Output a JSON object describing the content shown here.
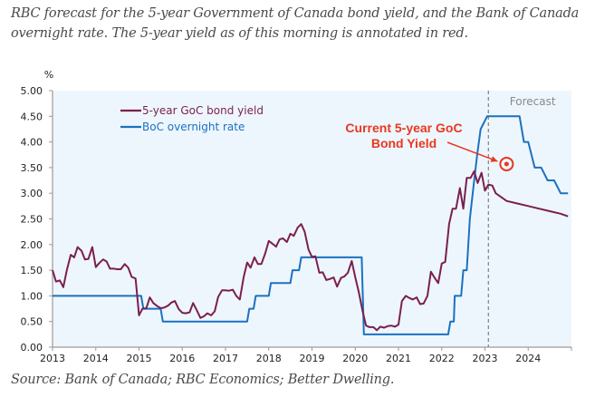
{
  "caption": "RBC forecast for the 5-year Government of Canada bond yield, and the Bank of Canada overnight rate. The 5-year yield as of this morning is annotated in red.",
  "source": "Source: Bank of Canada; RBC Economics; Better Dwelling.",
  "colors": {
    "bond": "#7b1f4e",
    "overnight": "#1a72c0",
    "annotation": "#e8381f",
    "plot_bg": "#eef6fd",
    "forecast_line": "#8a8a8a"
  },
  "chart_data": {
    "type": "line",
    "title": "",
    "xlabel": "",
    "ylabel": "%",
    "xlim": [
      2013,
      2025
    ],
    "ylim": [
      0,
      5
    ],
    "x_ticks": [
      "2013",
      "2014",
      "2015",
      "2016",
      "2017",
      "2018",
      "2019",
      "2020",
      "2021",
      "2022",
      "2023",
      "2024"
    ],
    "y_ticks": [
      "0.00",
      "0.50",
      "1.00",
      "1.50",
      "2.00",
      "2.50",
      "3.00",
      "3.50",
      "4.00",
      "4.50",
      "5.00"
    ],
    "grid": false,
    "legend": {
      "position": "top-left",
      "entries": [
        "5-year GoC bond yield",
        "BoC overnight rate"
      ]
    },
    "forecast_start": 2023.08,
    "forecast_label": "Forecast",
    "annotation": {
      "text_lines": [
        "Current 5-year GoC",
        "Bond Yield"
      ],
      "x": 2023.5,
      "y": 3.57
    },
    "series": [
      {
        "name": "5-year GoC bond yield",
        "x": [
          2013.0,
          2013.08,
          2013.17,
          2013.25,
          2013.33,
          2013.42,
          2013.5,
          2013.58,
          2013.67,
          2013.75,
          2013.83,
          2013.92,
          2014.0,
          2014.08,
          2014.17,
          2014.25,
          2014.33,
          2014.42,
          2014.5,
          2014.58,
          2014.67,
          2014.75,
          2014.83,
          2014.92,
          2015.0,
          2015.08,
          2015.17,
          2015.25,
          2015.33,
          2015.42,
          2015.5,
          2015.58,
          2015.67,
          2015.75,
          2015.83,
          2015.92,
          2016.0,
          2016.08,
          2016.17,
          2016.25,
          2016.33,
          2016.42,
          2016.5,
          2016.58,
          2016.67,
          2016.75,
          2016.83,
          2016.92,
          2017.0,
          2017.08,
          2017.17,
          2017.25,
          2017.33,
          2017.42,
          2017.5,
          2017.58,
          2017.67,
          2017.75,
          2017.83,
          2017.92,
          2018.0,
          2018.08,
          2018.17,
          2018.25,
          2018.33,
          2018.42,
          2018.5,
          2018.58,
          2018.67,
          2018.75,
          2018.83,
          2018.92,
          2019.0,
          2019.08,
          2019.17,
          2019.25,
          2019.33,
          2019.42,
          2019.5,
          2019.58,
          2019.67,
          2019.75,
          2019.83,
          2019.92,
          2020.0,
          2020.08,
          2020.17,
          2020.25,
          2020.33,
          2020.42,
          2020.5,
          2020.58,
          2020.67,
          2020.75,
          2020.83,
          2020.92,
          2021.0,
          2021.08,
          2021.17,
          2021.25,
          2021.33,
          2021.42,
          2021.5,
          2021.58,
          2021.67,
          2021.75,
          2021.83,
          2021.92,
          2022.0,
          2022.08,
          2022.17,
          2022.25,
          2022.33,
          2022.42,
          2022.5,
          2022.58,
          2022.67,
          2022.75,
          2022.83,
          2022.92,
          2023.0,
          2023.08,
          2023.17,
          2023.25,
          2023.5,
          2023.75,
          2024.0,
          2024.25,
          2024.5,
          2024.75,
          2024.92
        ],
        "values": [
          1.5,
          1.28,
          1.3,
          1.17,
          1.5,
          1.8,
          1.75,
          1.95,
          1.88,
          1.71,
          1.72,
          1.95,
          1.56,
          1.64,
          1.71,
          1.67,
          1.53,
          1.53,
          1.52,
          1.52,
          1.62,
          1.55,
          1.37,
          1.34,
          0.62,
          0.75,
          0.76,
          0.97,
          0.86,
          0.8,
          0.76,
          0.77,
          0.81,
          0.87,
          0.9,
          0.74,
          0.67,
          0.66,
          0.68,
          0.86,
          0.73,
          0.57,
          0.6,
          0.66,
          0.62,
          0.7,
          0.98,
          1.11,
          1.11,
          1.1,
          1.12,
          1.0,
          0.93,
          1.37,
          1.65,
          1.55,
          1.75,
          1.62,
          1.62,
          1.83,
          2.07,
          2.02,
          1.96,
          2.1,
          2.12,
          2.05,
          2.21,
          2.17,
          2.33,
          2.4,
          2.25,
          1.9,
          1.76,
          1.77,
          1.45,
          1.46,
          1.31,
          1.33,
          1.36,
          1.18,
          1.35,
          1.38,
          1.45,
          1.68,
          1.36,
          1.08,
          0.7,
          0.42,
          0.39,
          0.39,
          0.33,
          0.4,
          0.38,
          0.41,
          0.42,
          0.4,
          0.44,
          0.9,
          1.0,
          0.96,
          0.93,
          0.97,
          0.84,
          0.85,
          1.0,
          1.47,
          1.36,
          1.25,
          1.63,
          1.66,
          2.4,
          2.7,
          2.7,
          3.1,
          2.7,
          3.3,
          3.3,
          3.43,
          3.2,
          3.4,
          3.05,
          3.17,
          3.15,
          3.0,
          2.85,
          2.8,
          2.75,
          2.7,
          2.65,
          2.6,
          2.55
        ]
      },
      {
        "name": "BoC overnight rate",
        "x": [
          2013.0,
          2015.05,
          2015.1,
          2015.5,
          2015.55,
          2017.5,
          2017.55,
          2017.65,
          2017.7,
          2018.0,
          2018.05,
          2018.5,
          2018.55,
          2018.7,
          2018.75,
          2020.15,
          2020.2,
          2022.15,
          2022.2,
          2022.28,
          2022.3,
          2022.45,
          2022.5,
          2022.58,
          2022.65,
          2022.75,
          2022.82,
          2022.9,
          2023.05,
          2023.8,
          2023.9,
          2024.0,
          2024.15,
          2024.3,
          2024.45,
          2024.6,
          2024.75,
          2024.92
        ],
        "values": [
          1.0,
          1.0,
          0.75,
          0.75,
          0.5,
          0.5,
          0.75,
          0.75,
          1.0,
          1.0,
          1.25,
          1.25,
          1.5,
          1.5,
          1.75,
          1.75,
          0.25,
          0.25,
          0.5,
          0.5,
          1.0,
          1.0,
          1.5,
          1.5,
          2.5,
          3.25,
          3.75,
          4.25,
          4.5,
          4.5,
          4.0,
          4.0,
          3.5,
          3.5,
          3.25,
          3.25,
          3.0,
          3.0
        ]
      }
    ]
  }
}
